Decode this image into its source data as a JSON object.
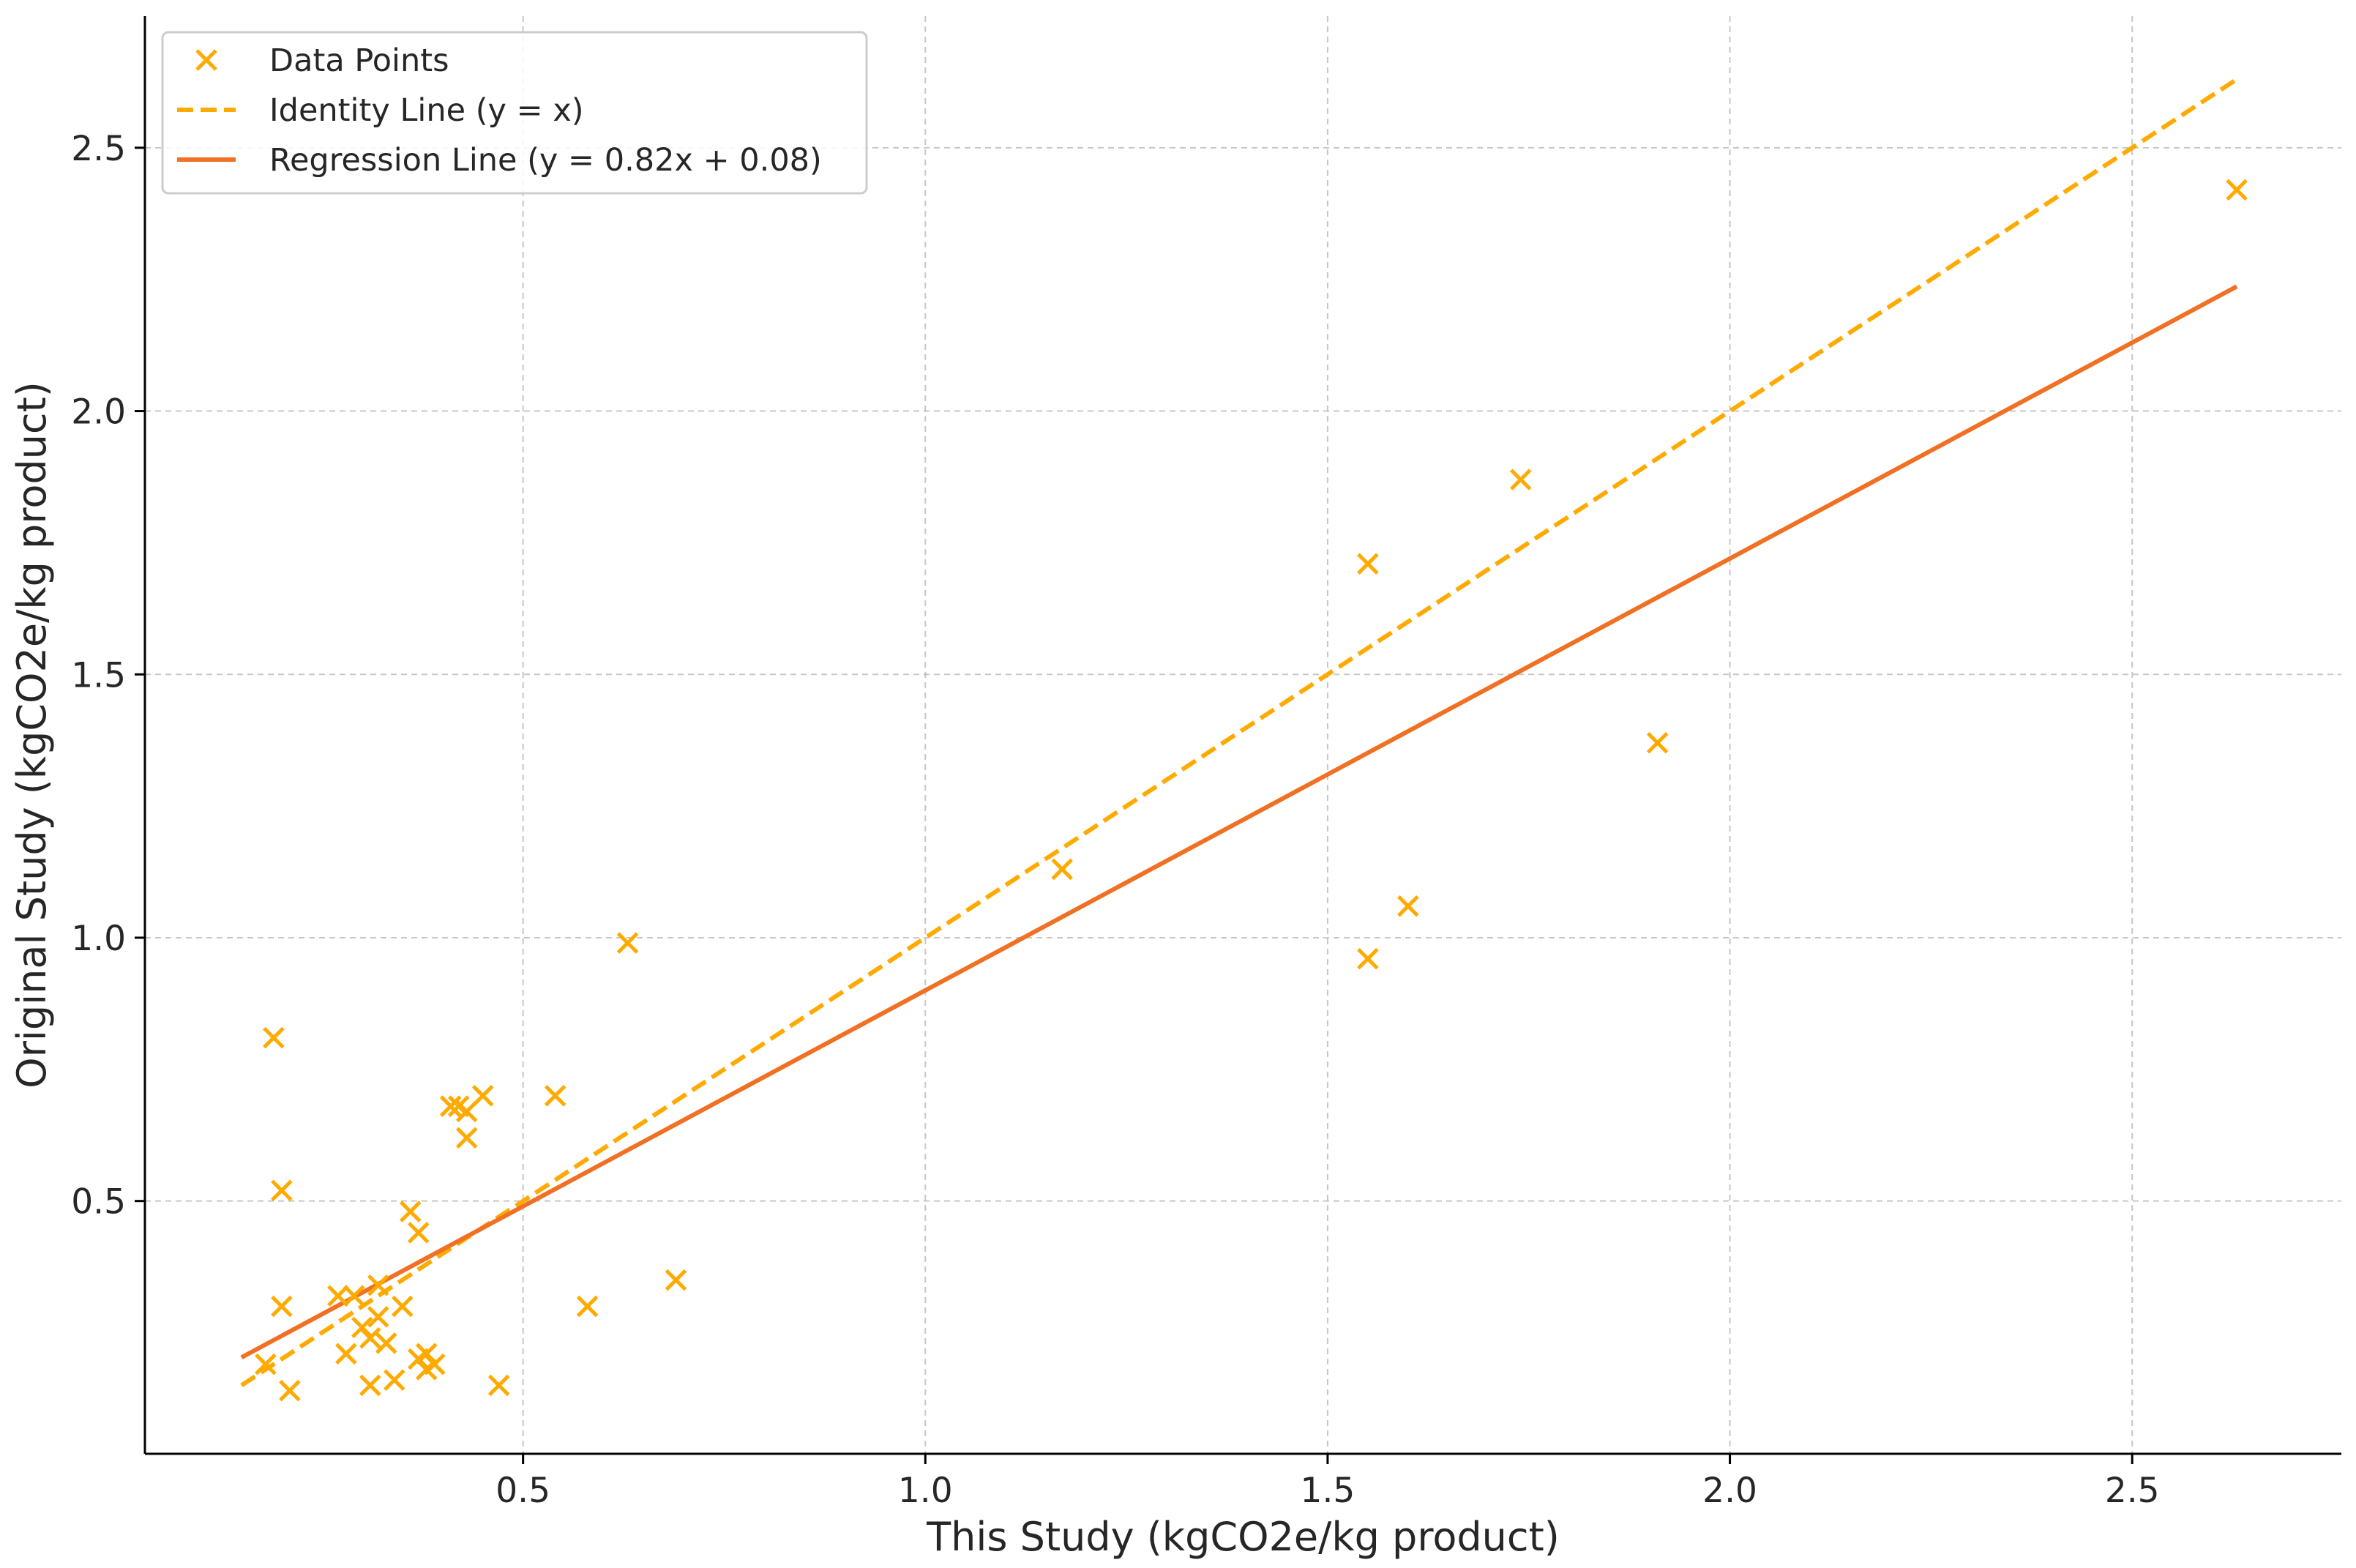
{
  "chart_data": {
    "type": "scatter",
    "title": "",
    "xlabel": "This Study (kgCO2e/kg product)",
    "ylabel": "Original Study (kgCO2e/kg product)",
    "xlim": [
      0.03,
      2.76
    ],
    "ylim": [
      0.02,
      2.75
    ],
    "xticks": [
      0.5,
      1.0,
      1.5,
      2.0,
      2.5
    ],
    "yticks": [
      0.5,
      1.0,
      1.5,
      2.0,
      2.5
    ],
    "xtick_labels": [
      "0.5",
      "1.0",
      "1.5",
      "2.0",
      "2.5"
    ],
    "ytick_labels": [
      "0.5",
      "1.0",
      "1.5",
      "2.0",
      "2.5"
    ],
    "grid": true,
    "legend_position": "top-left",
    "colors": {
      "points": "#ffaa00",
      "identity": "#ffaa00",
      "regression": "#f07024"
    },
    "legend": [
      {
        "label": "Data Points",
        "style": "marker-x"
      },
      {
        "label": "Identity Line (y = x)",
        "style": "dashed"
      },
      {
        "label": "Regression Line (y = 0.82x + 0.08)",
        "style": "solid"
      }
    ],
    "series": [
      {
        "name": "Data Points",
        "kind": "scatter",
        "points": [
          [
            2.63,
            2.42
          ],
          [
            1.74,
            1.87
          ],
          [
            1.55,
            1.71
          ],
          [
            1.91,
            1.37
          ],
          [
            1.17,
            1.13
          ],
          [
            1.6,
            1.06
          ],
          [
            1.55,
            0.96
          ],
          [
            0.63,
            0.99
          ],
          [
            0.19,
            0.81
          ],
          [
            0.45,
            0.7
          ],
          [
            0.54,
            0.7
          ],
          [
            0.41,
            0.68
          ],
          [
            0.42,
            0.68
          ],
          [
            0.43,
            0.67
          ],
          [
            0.43,
            0.62
          ],
          [
            0.2,
            0.52
          ],
          [
            0.36,
            0.48
          ],
          [
            0.37,
            0.44
          ],
          [
            0.69,
            0.35
          ],
          [
            0.32,
            0.34
          ],
          [
            0.27,
            0.32
          ],
          [
            0.29,
            0.32
          ],
          [
            0.2,
            0.3
          ],
          [
            0.35,
            0.3
          ],
          [
            0.58,
            0.3
          ],
          [
            0.32,
            0.28
          ],
          [
            0.3,
            0.26
          ],
          [
            0.31,
            0.24
          ],
          [
            0.33,
            0.23
          ],
          [
            0.28,
            0.21
          ],
          [
            0.38,
            0.21
          ],
          [
            0.37,
            0.2
          ],
          [
            0.39,
            0.19
          ],
          [
            0.18,
            0.19
          ],
          [
            0.38,
            0.18
          ],
          [
            0.34,
            0.16
          ],
          [
            0.47,
            0.15
          ],
          [
            0.31,
            0.15
          ],
          [
            0.21,
            0.14
          ]
        ]
      },
      {
        "name": "Identity Line (y = x)",
        "kind": "line",
        "points": [
          [
            0.15,
            0.15
          ],
          [
            2.63,
            2.63
          ]
        ]
      },
      {
        "name": "Regression Line (y = 0.82x + 0.08)",
        "kind": "line",
        "points": [
          [
            0.15,
            0.203
          ],
          [
            2.63,
            2.2366
          ]
        ]
      }
    ]
  }
}
